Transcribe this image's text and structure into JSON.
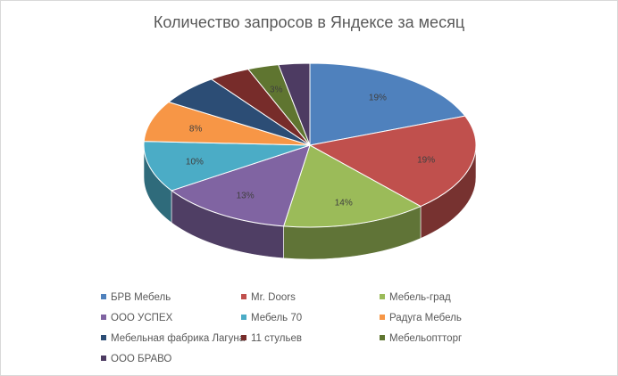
{
  "chart_data": {
    "type": "pie",
    "title": "Количество запросов в Яндексе за месяц",
    "categories": [
      "БРВ Мебель",
      "Mr. Doors",
      "Мебель-град",
      "ООО УСПЕХ",
      "Мебель 70",
      "Радуга Мебель",
      "Мебельная фабрика Лагуна",
      "11 стульев",
      "Мебельоптторг",
      "ООО БРАВО"
    ],
    "values": [
      19,
      19,
      14,
      13,
      10,
      8,
      6,
      4,
      3,
      3
    ],
    "value_labels": [
      "19%",
      "19%",
      "14%",
      "13%",
      "10%",
      "8%",
      "",
      "",
      "3%",
      ""
    ],
    "colors": [
      "#4F81BD",
      "#C0504D",
      "#9BBB59",
      "#8064A2",
      "#4BACC6",
      "#F79646",
      "#2C4D75",
      "#772C2A",
      "#5F7530",
      "#4D3B62"
    ],
    "legend_position": "bottom",
    "style": "3d"
  }
}
